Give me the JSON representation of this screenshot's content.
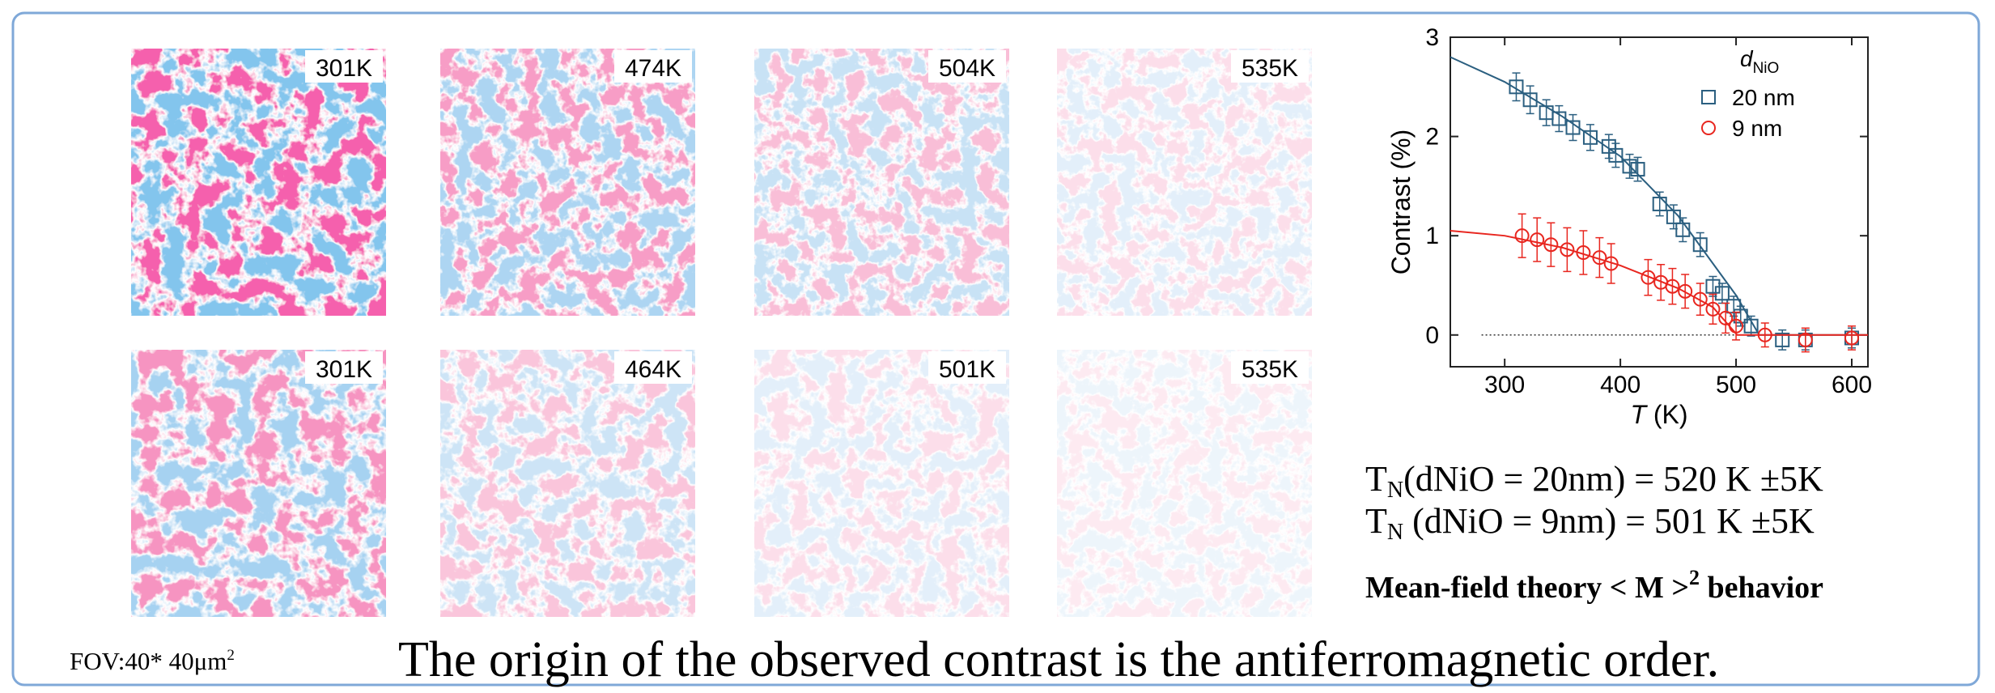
{
  "images": [
    {
      "label": "301K"
    },
    {
      "label": "474K"
    },
    {
      "label": "504K"
    },
    {
      "label": "535K"
    },
    {
      "label": "301K"
    },
    {
      "label": "464K"
    },
    {
      "label": "501K"
    },
    {
      "label": "535K"
    }
  ],
  "fov": {
    "text": "FOV:40* 40μm",
    "sup": "2"
  },
  "caption": "The origin of the observed contrast is the antiferromagnetic order.",
  "equations": [
    {
      "symbol": "T",
      "sub": "N",
      "text": "(dNiO = 20nm) = 520 K ±5K"
    },
    {
      "symbol": "T",
      "sub": "N",
      "text": " (dNiO = 9nm) = 501 K ±5K"
    }
  ],
  "note": {
    "text": "Mean-field theory < M >",
    "sup": "2",
    "tail": " behavior"
  },
  "chart_data": {
    "type": "scatter",
    "x_label": {
      "var": "T",
      "unit": " (K)"
    },
    "y_label": "Contrast (%)",
    "legend_title": {
      "var": "d",
      "sub": "NiO"
    },
    "xlim": [
      253,
      614
    ],
    "ylim": [
      -0.32,
      3
    ],
    "xticks": [
      300,
      400,
      500,
      600
    ],
    "yticks": [
      0,
      1,
      2,
      3
    ],
    "reference_line": {
      "x": [
        280,
        600
      ],
      "y": 0
    },
    "series": [
      {
        "name": "20 nm",
        "color": "#2b5f80",
        "marker": "square",
        "x": [
          310,
          322,
          336,
          347,
          359,
          374,
          390,
          396,
          408,
          415,
          434,
          446,
          454,
          469,
          480,
          488,
          498,
          504,
          513,
          540,
          560,
          600
        ],
        "values": [
          2.5,
          2.37,
          2.24,
          2.18,
          2.09,
          1.99,
          1.9,
          1.81,
          1.7,
          1.67,
          1.32,
          1.19,
          1.06,
          0.91,
          0.49,
          0.42,
          0.29,
          0.19,
          0.09,
          -0.05,
          -0.05,
          -0.03
        ],
        "errors": [
          0.14,
          0.14,
          0.13,
          0.13,
          0.13,
          0.13,
          0.12,
          0.12,
          0.12,
          0.12,
          0.12,
          0.12,
          0.12,
          0.12,
          0.1,
          0.1,
          0.1,
          0.1,
          0.1,
          0.1,
          0.1,
          0.1
        ],
        "fit": {
          "x": [
            253,
            300,
            350,
            400,
            450,
            500,
            520,
            614
          ],
          "values": [
            2.8,
            2.55,
            2.2,
            1.8,
            1.2,
            0.4,
            0,
            0
          ]
        }
      },
      {
        "name": "9 nm",
        "color": "#e8261f",
        "marker": "circle",
        "x": [
          315,
          328,
          340,
          354,
          368,
          382,
          392,
          424,
          435,
          445,
          456,
          469,
          480,
          491,
          500,
          525,
          560,
          600
        ],
        "values": [
          1.0,
          0.96,
          0.91,
          0.86,
          0.83,
          0.78,
          0.72,
          0.58,
          0.53,
          0.49,
          0.44,
          0.36,
          0.26,
          0.17,
          0.09,
          0,
          -0.05,
          -0.03
        ],
        "errors": [
          0.22,
          0.22,
          0.22,
          0.22,
          0.22,
          0.2,
          0.2,
          0.18,
          0.18,
          0.18,
          0.17,
          0.16,
          0.15,
          0.15,
          0.14,
          0.12,
          0.12,
          0.12
        ],
        "fit": {
          "x": [
            253,
            300,
            350,
            400,
            450,
            480,
            501,
            614
          ],
          "values": [
            1.05,
            1.0,
            0.88,
            0.7,
            0.47,
            0.28,
            0,
            0
          ]
        }
      }
    ]
  }
}
